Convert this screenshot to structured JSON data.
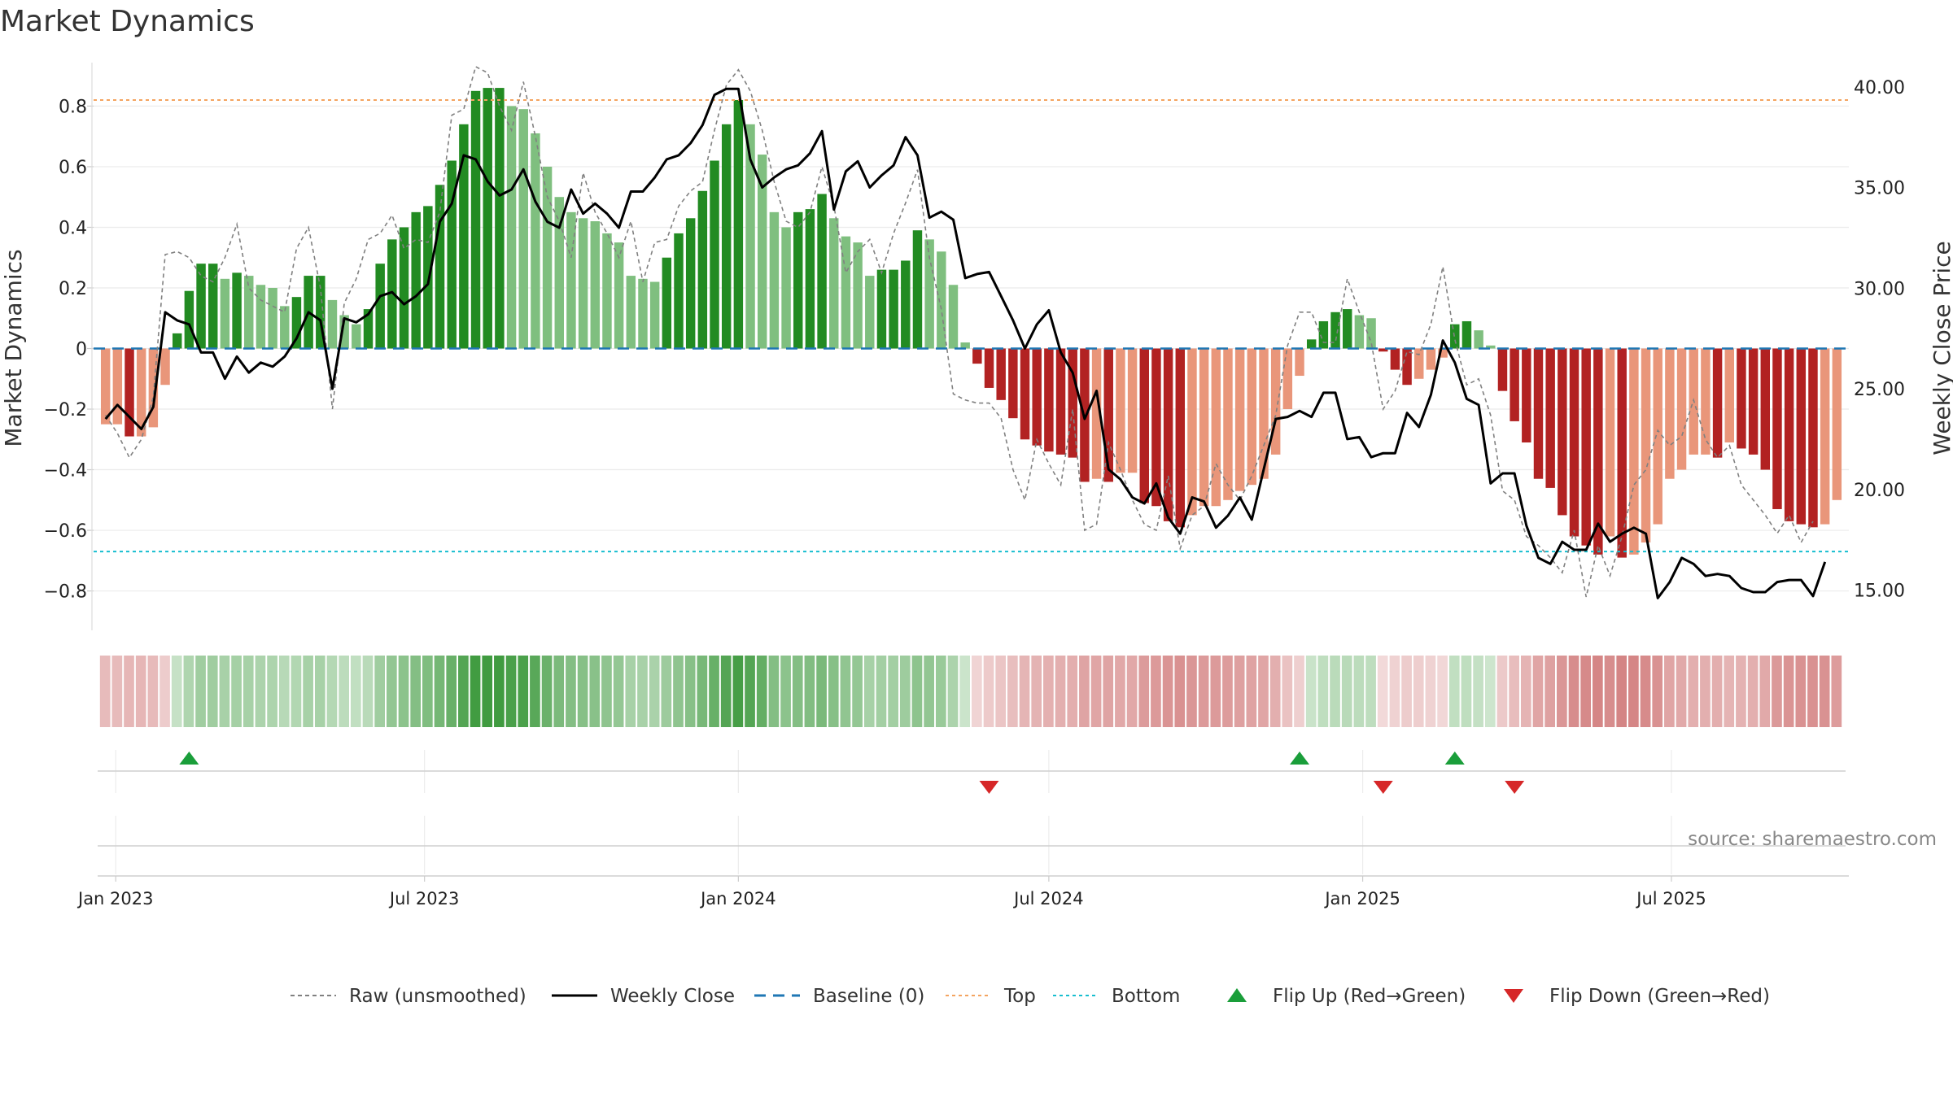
{
  "title": "Market Dynamics",
  "source_label": "source: sharemaestro.com",
  "colors": {
    "strong_green": "#228b22",
    "light_green": "#7fbf7f",
    "strong_red": "#b22222",
    "light_red": "#e9967a",
    "close_line": "#000000",
    "raw_line": "#808080",
    "baseline": "#1f77b4",
    "top": "#f4a460",
    "bottom": "#17becf",
    "flip_up": "#1a9e3a",
    "flip_down": "#d62728"
  },
  "legend": [
    {
      "key": "raw",
      "label": "Raw (unsmoothed)"
    },
    {
      "key": "close",
      "label": "Weekly Close"
    },
    {
      "key": "baseline",
      "label": "Baseline (0)"
    },
    {
      "key": "top",
      "label": "Top"
    },
    {
      "key": "bottom",
      "label": "Bottom"
    },
    {
      "key": "flip_up",
      "label": "Flip Up (Red→Green)"
    },
    {
      "key": "flip_down",
      "label": "Flip Down (Green→Red)"
    }
  ],
  "chart_data": {
    "type": "bar",
    "title": "Market Dynamics",
    "ylabel": "Market Dynamics",
    "y2label": "Weekly Close Price",
    "ylim": [
      -0.93,
      0.93
    ],
    "y2lim": [
      13.0,
      41.0
    ],
    "yticks": [
      0.8,
      0.6,
      0.4,
      0.2,
      0,
      -0.2,
      -0.4,
      -0.6,
      -0.8
    ],
    "ytick_labels": [
      "0.8",
      "0.6",
      "0.4",
      "0.2",
      "0",
      "−0.2",
      "−0.4",
      "−0.6",
      "−0.8"
    ],
    "y2ticks": [
      40,
      35,
      30,
      25,
      20,
      15
    ],
    "y2tick_labels": [
      "40.00",
      "35.00",
      "30.00",
      "25.00",
      "20.00",
      "15.00"
    ],
    "x_start": "2022-12-19",
    "x_end": "2025-10-13",
    "week_start": "2022-12-26",
    "xticks": [
      {
        "date": "2023-01-01",
        "label": "Jan 2023"
      },
      {
        "date": "2023-07-01",
        "label": "Jul 2023"
      },
      {
        "date": "2024-01-01",
        "label": "Jan 2024"
      },
      {
        "date": "2024-07-01",
        "label": "Jul 2024"
      },
      {
        "date": "2025-01-01",
        "label": "Jan 2025"
      },
      {
        "date": "2025-07-01",
        "label": "Jul 2025"
      }
    ],
    "top_level": 0.82,
    "bottom_level": -0.67,
    "baseline": 0,
    "momentum": [
      -0.25,
      -0.25,
      -0.29,
      -0.29,
      -0.26,
      -0.12,
      0.05,
      0.19,
      0.28,
      0.28,
      0.23,
      0.25,
      0.24,
      0.21,
      0.2,
      0.14,
      0.17,
      0.24,
      0.24,
      0.16,
      0.11,
      0.08,
      0.13,
      0.28,
      0.36,
      0.4,
      0.45,
      0.47,
      0.54,
      0.62,
      0.74,
      0.85,
      0.86,
      0.86,
      0.8,
      0.79,
      0.71,
      0.6,
      0.5,
      0.45,
      0.43,
      0.42,
      0.38,
      0.35,
      0.24,
      0.23,
      0.22,
      0.3,
      0.38,
      0.43,
      0.52,
      0.62,
      0.74,
      0.82,
      0.74,
      0.64,
      0.45,
      0.4,
      0.45,
      0.46,
      0.51,
      0.43,
      0.37,
      0.35,
      0.24,
      0.26,
      0.26,
      0.29,
      0.39,
      0.36,
      0.32,
      0.21,
      0.02,
      -0.05,
      -0.13,
      -0.17,
      -0.23,
      -0.3,
      -0.32,
      -0.34,
      -0.35,
      -0.36,
      -0.44,
      -0.43,
      -0.44,
      -0.41,
      -0.41,
      -0.51,
      -0.52,
      -0.57,
      -0.59,
      -0.55,
      -0.52,
      -0.52,
      -0.5,
      -0.47,
      -0.45,
      -0.43,
      -0.35,
      -0.2,
      -0.09,
      0.03,
      0.09,
      0.12,
      0.13,
      0.11,
      0.1,
      -0.01,
      -0.07,
      -0.12,
      -0.1,
      -0.07,
      -0.03,
      0.08,
      0.09,
      0.06,
      0.01,
      -0.14,
      -0.24,
      -0.31,
      -0.43,
      -0.46,
      -0.55,
      -0.62,
      -0.65,
      -0.68,
      -0.62,
      -0.69,
      -0.68,
      -0.64,
      -0.58,
      -0.43,
      -0.4,
      -0.35,
      -0.35,
      -0.36,
      -0.31,
      -0.33,
      -0.35,
      -0.4,
      -0.53,
      -0.57,
      -0.58,
      -0.59,
      -0.58,
      -0.5
    ],
    "raw": [
      -0.22,
      -0.28,
      -0.36,
      -0.3,
      -0.16,
      0.31,
      0.32,
      0.3,
      0.24,
      0.22,
      0.3,
      0.41,
      0.2,
      0.16,
      0.14,
      0.12,
      0.33,
      0.4,
      0.2,
      -0.2,
      0.15,
      0.23,
      0.36,
      0.38,
      0.44,
      0.33,
      0.36,
      0.35,
      0.45,
      0.77,
      0.79,
      0.93,
      0.91,
      0.8,
      0.72,
      0.88,
      0.7,
      0.5,
      0.42,
      0.3,
      0.58,
      0.45,
      0.38,
      0.3,
      0.42,
      0.22,
      0.35,
      0.36,
      0.47,
      0.52,
      0.55,
      0.72,
      0.87,
      0.92,
      0.85,
      0.72,
      0.55,
      0.42,
      0.4,
      0.45,
      0.6,
      0.47,
      0.25,
      0.32,
      0.36,
      0.25,
      0.38,
      0.48,
      0.59,
      0.3,
      0.13,
      -0.15,
      -0.17,
      -0.18,
      -0.18,
      -0.23,
      -0.4,
      -0.5,
      -0.3,
      -0.38,
      -0.45,
      -0.2,
      -0.6,
      -0.58,
      -0.31,
      -0.4,
      -0.5,
      -0.58,
      -0.6,
      -0.42,
      -0.66,
      -0.55,
      -0.52,
      -0.38,
      -0.45,
      -0.5,
      -0.42,
      -0.32,
      -0.22,
      0.01,
      0.12,
      0.12,
      0.02,
      0.02,
      0.23,
      0.12,
      0.02,
      -0.2,
      -0.14,
      -0.01,
      -0.02,
      0.08,
      0.27,
      0.03,
      -0.12,
      -0.1,
      -0.22,
      -0.47,
      -0.5,
      -0.62,
      -0.65,
      -0.69,
      -0.74,
      -0.6,
      -0.82,
      -0.65,
      -0.75,
      -0.62,
      -0.45,
      -0.4,
      -0.27,
      -0.32,
      -0.29,
      -0.17,
      -0.3,
      -0.36,
      -0.32,
      -0.45,
      -0.5,
      -0.55,
      -0.61,
      -0.55,
      -0.64,
      -0.57
    ],
    "close": [
      23.5,
      24.2,
      23.6,
      23.0,
      24.1,
      28.8,
      28.4,
      28.2,
      26.8,
      26.8,
      25.5,
      26.6,
      25.8,
      26.3,
      26.1,
      26.6,
      27.5,
      28.8,
      28.4,
      25.0,
      28.5,
      28.3,
      28.7,
      29.6,
      29.8,
      29.2,
      29.6,
      30.2,
      33.3,
      34.2,
      36.6,
      36.4,
      35.3,
      34.6,
      34.9,
      35.9,
      34.3,
      33.3,
      33.0,
      34.9,
      33.7,
      34.2,
      33.7,
      33.0,
      34.8,
      34.8,
      35.5,
      36.4,
      36.6,
      37.2,
      38.1,
      39.6,
      39.9,
      39.9,
      36.4,
      35.0,
      35.5,
      35.9,
      36.1,
      36.7,
      37.8,
      33.9,
      35.8,
      36.3,
      35.0,
      35.6,
      36.1,
      37.5,
      36.6,
      33.5,
      33.8,
      33.4,
      30.5,
      30.7,
      30.8,
      29.6,
      28.4,
      27.0,
      28.2,
      28.9,
      26.8,
      25.8,
      23.5,
      24.9,
      21.0,
      20.5,
      19.6,
      19.3,
      20.3,
      18.6,
      17.8,
      19.6,
      19.4,
      18.1,
      18.7,
      19.6,
      18.5,
      21.0,
      23.5,
      23.6,
      23.9,
      23.6,
      24.8,
      24.8,
      22.5,
      22.6,
      21.6,
      21.8,
      21.8,
      23.8,
      23.1,
      24.7,
      27.4,
      26.3,
      24.5,
      24.2,
      20.3,
      20.8,
      20.8,
      18.2,
      16.6,
      16.3,
      17.4,
      17.0,
      17.0,
      18.3,
      17.4,
      17.8,
      18.1,
      17.8,
      14.6,
      15.4,
      16.6,
      16.3,
      15.7,
      15.8,
      15.7,
      15.1,
      14.9,
      14.9,
      15.4,
      15.5,
      15.5,
      14.7,
      16.4
    ],
    "flip_up_dates": [
      "2023-02-13",
      "2024-11-25",
      "2025-02-24"
    ],
    "flip_down_dates": [
      "2024-05-27",
      "2025-01-13",
      "2025-03-31"
    ]
  }
}
